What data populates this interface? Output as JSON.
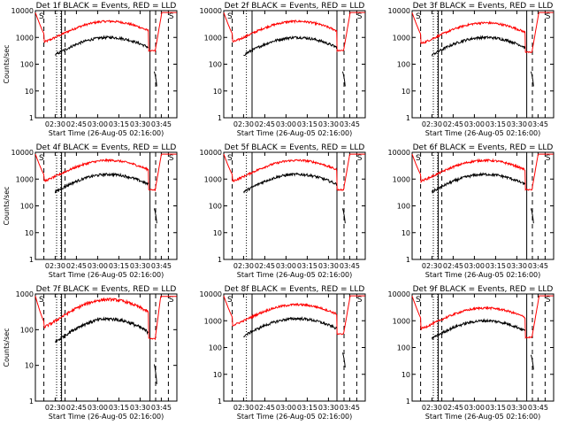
{
  "colors": {
    "events": "#000000",
    "lld": "#ff0000",
    "background": "#ffffff"
  },
  "chart_data": [
    {
      "type": "line",
      "title": "Det 1f BLACK = Events, RED = LLD",
      "variant": "A",
      "xlabel": "Start Time (26-Aug-05 02:16:00)",
      "ylabel": "Counts/sec",
      "xticks": [
        "02:30",
        "02:45",
        "03:00",
        "03:15",
        "03:30",
        "03:45"
      ],
      "yticks": [
        "1",
        "10",
        "100",
        "1000",
        "10000"
      ],
      "ylim": [
        1,
        10000
      ],
      "yscale": "log",
      "xlim": [
        "02:16",
        "03:56"
      ],
      "flags": [
        "S",
        "S"
      ],
      "legend": "title",
      "series": [
        {
          "name": "BLACK = Events",
          "peak": 1000
        },
        {
          "name": "RED = LLD",
          "peak": 4000
        }
      ]
    },
    {
      "type": "line",
      "title": "Det 2f BLACK = Events, RED = LLD",
      "variant": "B",
      "xlabel": "Start Time (26-Aug-05 02:16:00)",
      "ylabel": "",
      "xticks": [
        "02:30",
        "02:45",
        "03:00",
        "03:15",
        "03:30",
        "03:45"
      ],
      "yticks": [
        "1",
        "10",
        "100",
        "1000",
        "10000"
      ],
      "ylim": [
        1,
        10000
      ],
      "yscale": "log",
      "xlim": [
        "02:16",
        "03:56"
      ],
      "flags": [
        "S",
        "S"
      ],
      "legend": "title",
      "series": [
        {
          "name": "BLACK = Events",
          "peak": 1000
        },
        {
          "name": "RED = LLD",
          "peak": 4000
        }
      ]
    },
    {
      "type": "line",
      "title": "Det 3f BLACK = Events, RED = LLD",
      "variant": "A",
      "xlabel": "Start Time (26-Aug-05 02:16:00)",
      "ylabel": "",
      "xticks": [
        "02:30",
        "02:45",
        "03:00",
        "03:15",
        "03:30",
        "03:45"
      ],
      "yticks": [
        "1",
        "10",
        "100",
        "1000",
        "10000"
      ],
      "ylim": [
        1,
        10000
      ],
      "yscale": "log",
      "xlim": [
        "02:16",
        "03:56"
      ],
      "flags": [
        "S",
        "S"
      ],
      "legend": "title",
      "series": [
        {
          "name": "BLACK = Events",
          "peak": 1000
        },
        {
          "name": "RED = LLD",
          "peak": 3500
        }
      ]
    },
    {
      "type": "line",
      "title": "Det 4f BLACK = Events, RED = LLD",
      "variant": "A",
      "xlabel": "Start Time (26-Aug-05 02:16:00)",
      "ylabel": "Counts/sec",
      "xticks": [
        "02:30",
        "02:45",
        "03:00",
        "03:15",
        "03:30",
        "03:45"
      ],
      "yticks": [
        "1",
        "10",
        "100",
        "1000",
        "10000"
      ],
      "ylim": [
        1,
        10000
      ],
      "yscale": "log",
      "xlim": [
        "02:16",
        "03:56"
      ],
      "flags": [
        "S",
        "S"
      ],
      "legend": "title",
      "series": [
        {
          "name": "BLACK = Events",
          "peak": 1500
        },
        {
          "name": "RED = LLD",
          "peak": 5000
        }
      ]
    },
    {
      "type": "line",
      "title": "Det 5f BLACK = Events, RED = LLD",
      "variant": "B",
      "xlabel": "Start Time (26-Aug-05 02:16:00)",
      "ylabel": "",
      "xticks": [
        "02:30",
        "02:45",
        "03:00",
        "03:15",
        "03:30",
        "03:45"
      ],
      "yticks": [
        "1",
        "10",
        "100",
        "1000",
        "10000"
      ],
      "ylim": [
        1,
        10000
      ],
      "yscale": "log",
      "xlim": [
        "02:16",
        "03:56"
      ],
      "flags": [
        "S",
        "S"
      ],
      "legend": "title",
      "series": [
        {
          "name": "BLACK = Events",
          "peak": 1500
        },
        {
          "name": "RED = LLD",
          "peak": 5000
        }
      ]
    },
    {
      "type": "line",
      "title": "Det 6f BLACK = Events, RED = LLD",
      "variant": "A",
      "xlabel": "Start Time (26-Aug-05 02:16:00)",
      "ylabel": "",
      "xticks": [
        "02:30",
        "02:45",
        "03:00",
        "03:15",
        "03:30",
        "03:45"
      ],
      "yticks": [
        "1",
        "10",
        "100",
        "1000",
        "10000"
      ],
      "ylim": [
        1,
        10000
      ],
      "yscale": "log",
      "xlim": [
        "02:16",
        "03:56"
      ],
      "flags": [
        "S",
        "S"
      ],
      "legend": "title",
      "series": [
        {
          "name": "BLACK = Events",
          "peak": 1500
        },
        {
          "name": "RED = LLD",
          "peak": 5000
        }
      ]
    },
    {
      "type": "line",
      "title": "Det 7f BLACK = Events, RED = LLD",
      "variant": "A",
      "xlabel": "Start Time (26-Aug-05 02:16:00)",
      "ylabel": "Counts/sec",
      "xticks": [
        "02:30",
        "02:45",
        "03:00",
        "03:15",
        "03:30",
        "03:45"
      ],
      "yticks": [
        "1",
        "10",
        "100",
        "1000"
      ],
      "ylim": [
        1,
        1000
      ],
      "yscale": "log",
      "xlim": [
        "02:16",
        "03:56"
      ],
      "flags": [
        "S",
        "S"
      ],
      "legend": "title",
      "series": [
        {
          "name": "BLACK = Events",
          "peak": 200
        },
        {
          "name": "RED = LLD",
          "peak": 700
        }
      ]
    },
    {
      "type": "line",
      "title": "Det 8f BLACK = Events, RED = LLD",
      "variant": "B",
      "xlabel": "Start Time (26-Aug-05 02:16:00)",
      "ylabel": "",
      "xticks": [
        "02:30",
        "02:45",
        "03:00",
        "03:15",
        "03:30",
        "03:45"
      ],
      "yticks": [
        "1",
        "10",
        "100",
        "1000",
        "10000"
      ],
      "ylim": [
        1,
        10000
      ],
      "yscale": "log",
      "xlim": [
        "02:16",
        "03:56"
      ],
      "flags": [
        "S",
        "S"
      ],
      "legend": "title",
      "series": [
        {
          "name": "BLACK = Events",
          "peak": 1200
        },
        {
          "name": "RED = LLD",
          "peak": 4000
        }
      ]
    },
    {
      "type": "line",
      "title": "Det 9f BLACK = Events, RED = LLD",
      "variant": "A",
      "xlabel": "Start Time (26-Aug-05 02:16:00)",
      "ylabel": "",
      "xticks": [
        "02:30",
        "02:45",
        "03:00",
        "03:15",
        "03:30",
        "03:45"
      ],
      "yticks": [
        "1",
        "10",
        "100",
        "1000",
        "10000"
      ],
      "ylim": [
        1,
        10000
      ],
      "yscale": "log",
      "xlim": [
        "02:16",
        "03:56"
      ],
      "flags": [
        "S",
        "S"
      ],
      "legend": "title",
      "series": [
        {
          "name": "BLACK = Events",
          "peak": 1000
        },
        {
          "name": "RED = LLD",
          "peak": 3000
        }
      ]
    }
  ]
}
